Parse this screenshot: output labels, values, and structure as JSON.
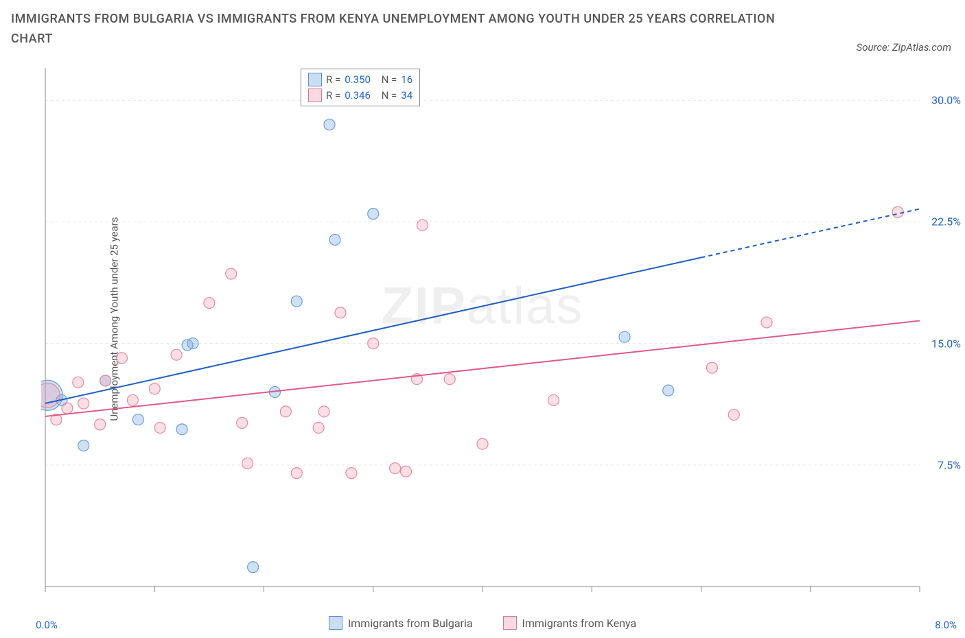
{
  "title": "IMMIGRANTS FROM BULGARIA VS IMMIGRANTS FROM KENYA UNEMPLOYMENT AMONG YOUTH UNDER 25 YEARS CORRELATION CHART",
  "source_label": "Source: ZipAtlas.com",
  "watermark": {
    "zip": "ZIP",
    "atlas": "atlas"
  },
  "yaxis_title": "Unemployment Among Youth under 25 years",
  "chart": {
    "type": "scatter",
    "xlim": [
      0.0,
      8.0
    ],
    "ylim": [
      0.0,
      32.0
    ],
    "x_ticks": [
      0.0,
      1.0,
      2.0,
      3.0,
      4.0,
      5.0,
      6.0,
      7.0,
      8.0
    ],
    "y_ticks": [
      7.5,
      15.0,
      22.5,
      30.0
    ],
    "x_tick_labels_visible": [
      "0.0%",
      "8.0%"
    ],
    "y_tick_labels": [
      "7.5%",
      "15.0%",
      "22.5%",
      "30.0%"
    ],
    "grid_color": "#e6e6e6",
    "grid_dash": "4,4",
    "axis_color": "#888888",
    "background_color": "#ffffff",
    "series": [
      {
        "key": "bulgaria",
        "label": "Immigrants from Bulgaria",
        "color_fill": "rgba(120,170,230,0.35)",
        "color_stroke": "#6aa0d8",
        "marker_r_default": 8,
        "trend": {
          "color": "#1f5fc4",
          "width": 2,
          "x1": 0.0,
          "y1": 11.3,
          "x2": 6.0,
          "y2": 20.3,
          "x2_ext": 8.0,
          "y2_ext": 23.3,
          "dash_ext": "6,5"
        },
        "R": "0.350",
        "N": "16",
        "points": [
          {
            "x": 0.02,
            "y": 11.8,
            "r": 22
          },
          {
            "x": 0.15,
            "y": 11.5,
            "r": 8
          },
          {
            "x": 0.55,
            "y": 12.7,
            "r": 8
          },
          {
            "x": 0.35,
            "y": 8.7,
            "r": 8
          },
          {
            "x": 0.85,
            "y": 10.3,
            "r": 8
          },
          {
            "x": 1.25,
            "y": 9.7,
            "r": 8
          },
          {
            "x": 1.3,
            "y": 14.9,
            "r": 8
          },
          {
            "x": 1.35,
            "y": 15.0,
            "r": 8
          },
          {
            "x": 1.9,
            "y": 1.2,
            "r": 8
          },
          {
            "x": 2.1,
            "y": 12.0,
            "r": 8
          },
          {
            "x": 2.3,
            "y": 17.6,
            "r": 8
          },
          {
            "x": 2.6,
            "y": 28.5,
            "r": 8
          },
          {
            "x": 2.65,
            "y": 21.4,
            "r": 8
          },
          {
            "x": 3.0,
            "y": 23.0,
            "r": 8
          },
          {
            "x": 5.3,
            "y": 15.4,
            "r": 8
          },
          {
            "x": 5.7,
            "y": 12.1,
            "r": 8
          }
        ]
      },
      {
        "key": "kenya",
        "label": "Immigrants from Kenya",
        "color_fill": "rgba(240,150,170,0.30)",
        "color_stroke": "#e48aa3",
        "marker_r_default": 8,
        "trend": {
          "color": "#e05a87",
          "width": 2,
          "x1": 0.0,
          "y1": 10.5,
          "x2": 8.0,
          "y2": 16.4
        },
        "R": "0.346",
        "N": "34",
        "points": [
          {
            "x": 0.02,
            "y": 11.8,
            "r": 18
          },
          {
            "x": 0.1,
            "y": 10.3,
            "r": 8
          },
          {
            "x": 0.2,
            "y": 11.0,
            "r": 8
          },
          {
            "x": 0.3,
            "y": 12.6,
            "r": 8
          },
          {
            "x": 0.35,
            "y": 11.3,
            "r": 8
          },
          {
            "x": 0.5,
            "y": 10.0,
            "r": 8
          },
          {
            "x": 0.55,
            "y": 12.7,
            "r": 8
          },
          {
            "x": 0.7,
            "y": 14.1,
            "r": 8
          },
          {
            "x": 0.8,
            "y": 11.5,
            "r": 8
          },
          {
            "x": 1.0,
            "y": 12.2,
            "r": 8
          },
          {
            "x": 1.05,
            "y": 9.8,
            "r": 8
          },
          {
            "x": 1.2,
            "y": 14.3,
            "r": 8
          },
          {
            "x": 1.5,
            "y": 17.5,
            "r": 8
          },
          {
            "x": 1.7,
            "y": 19.3,
            "r": 8
          },
          {
            "x": 1.85,
            "y": 7.6,
            "r": 8
          },
          {
            "x": 1.8,
            "y": 10.1,
            "r": 8
          },
          {
            "x": 2.2,
            "y": 10.8,
            "r": 8
          },
          {
            "x": 2.3,
            "y": 7.0,
            "r": 8
          },
          {
            "x": 2.5,
            "y": 9.8,
            "r": 8
          },
          {
            "x": 2.55,
            "y": 10.8,
            "r": 8
          },
          {
            "x": 2.7,
            "y": 16.9,
            "r": 8
          },
          {
            "x": 2.8,
            "y": 7.0,
            "r": 8
          },
          {
            "x": 3.0,
            "y": 15.0,
            "r": 8
          },
          {
            "x": 3.2,
            "y": 7.3,
            "r": 8
          },
          {
            "x": 3.3,
            "y": 7.1,
            "r": 8
          },
          {
            "x": 3.4,
            "y": 12.8,
            "r": 8
          },
          {
            "x": 3.45,
            "y": 22.3,
            "r": 8
          },
          {
            "x": 3.7,
            "y": 12.8,
            "r": 8
          },
          {
            "x": 4.0,
            "y": 8.8,
            "r": 8
          },
          {
            "x": 4.65,
            "y": 11.5,
            "r": 8
          },
          {
            "x": 6.1,
            "y": 13.5,
            "r": 8
          },
          {
            "x": 6.3,
            "y": 10.6,
            "r": 8
          },
          {
            "x": 6.6,
            "y": 16.3,
            "r": 8
          },
          {
            "x": 7.8,
            "y": 23.1,
            "r": 8
          }
        ]
      }
    ]
  },
  "legend_top": {
    "rows": [
      {
        "swatch": "blue",
        "r_label": "R =",
        "r_val": "0.350",
        "n_label": "N =",
        "n_val": "16"
      },
      {
        "swatch": "pink",
        "r_label": "R =",
        "r_val": "0.346",
        "n_label": "N =",
        "n_val": "34"
      }
    ]
  },
  "legend_bottom": {
    "items": [
      {
        "swatch": "blue",
        "label": "Immigrants from Bulgaria"
      },
      {
        "swatch": "pink",
        "label": "Immigrants from Kenya"
      }
    ]
  }
}
